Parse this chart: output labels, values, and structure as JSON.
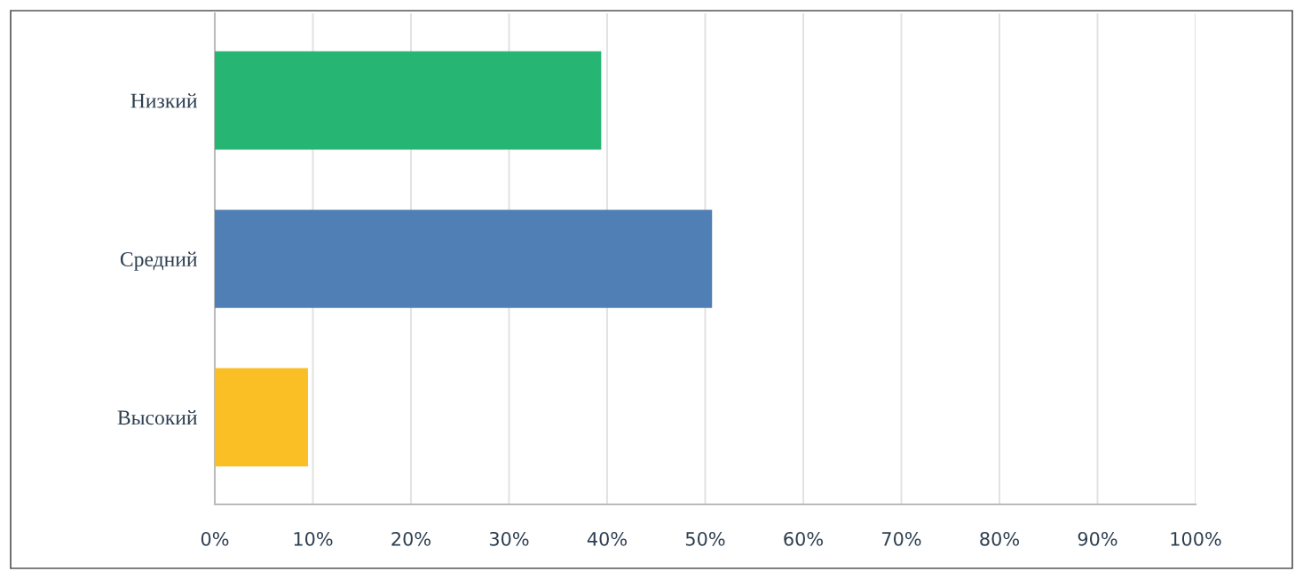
{
  "chart_data": {
    "type": "bar",
    "orientation": "horizontal",
    "categories": [
      "Низкий",
      "Средний",
      "Высокий"
    ],
    "values": [
      39.4,
      50.7,
      9.5
    ],
    "colors": [
      "#27b573",
      "#4f7fb5",
      "#fbbf26"
    ],
    "xlim": [
      0,
      100
    ],
    "xticks": [
      {
        "value": 0,
        "label": "0%"
      },
      {
        "value": 10,
        "label": "10%"
      },
      {
        "value": 20,
        "label": "20%"
      },
      {
        "value": 30,
        "label": "30%"
      },
      {
        "value": 40,
        "label": "40%"
      },
      {
        "value": 50,
        "label": "50%"
      },
      {
        "value": 60,
        "label": "60%"
      },
      {
        "value": 70,
        "label": "70%"
      },
      {
        "value": 80,
        "label": "80%"
      },
      {
        "value": 90,
        "label": "90%"
      },
      {
        "value": 100,
        "label": "100%"
      }
    ],
    "grid": "x",
    "legend": false
  }
}
